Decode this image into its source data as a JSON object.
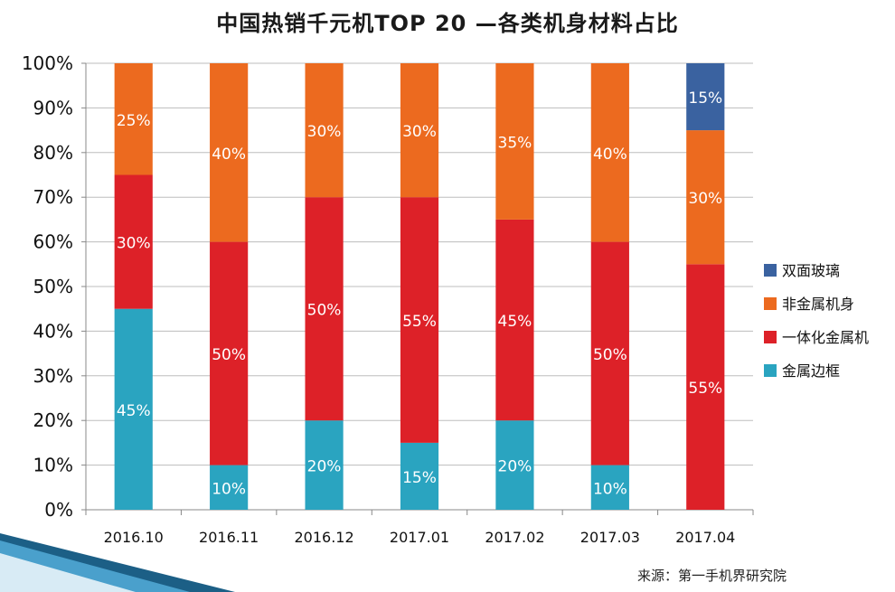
{
  "page": {
    "title": "中国热销千元机TOP 20 —各类机身材料占比",
    "source": "来源：第一手机界研究院"
  },
  "chart_data": {
    "type": "bar",
    "stacked": true,
    "title": "中国热销千元机TOP 20 —各类机身材料占比",
    "categories": [
      "2016.10",
      "2016.11",
      "2016.12",
      "2017.01",
      "2017.02",
      "2017.03",
      "2017.04"
    ],
    "y_ticks": [
      "0%",
      "10%",
      "20%",
      "30%",
      "40%",
      "50%",
      "60%",
      "70%",
      "80%",
      "90%",
      "100%"
    ],
    "ylim": [
      0,
      100
    ],
    "grid": true,
    "legend_position": "right",
    "series": [
      {
        "name": "金属边框",
        "color": "#2aa4c0",
        "values": [
          45,
          10,
          20,
          15,
          20,
          10,
          0
        ],
        "labels": [
          "45%",
          "10%",
          "20%",
          "15%",
          "20%",
          "10%",
          ""
        ]
      },
      {
        "name": "一体化金属机",
        "color": "#dd2128",
        "values": [
          30,
          50,
          50,
          55,
          45,
          50,
          55
        ],
        "labels": [
          "30%",
          "50%",
          "50%",
          "55%",
          "45%",
          "50%",
          "55%"
        ]
      },
      {
        "name": "非金属机身",
        "color": "#ec6a1f",
        "values": [
          25,
          40,
          30,
          30,
          35,
          40,
          30
        ],
        "labels": [
          "25%",
          "40%",
          "30%",
          "30%",
          "35%",
          "40%",
          "30%"
        ]
      },
      {
        "name": "双面玻璃",
        "color": "#3a62a0",
        "values": [
          0,
          0,
          0,
          0,
          0,
          0,
          15
        ],
        "labels": [
          "",
          "",
          "",
          "",
          "",
          "",
          "15%"
        ]
      }
    ]
  }
}
